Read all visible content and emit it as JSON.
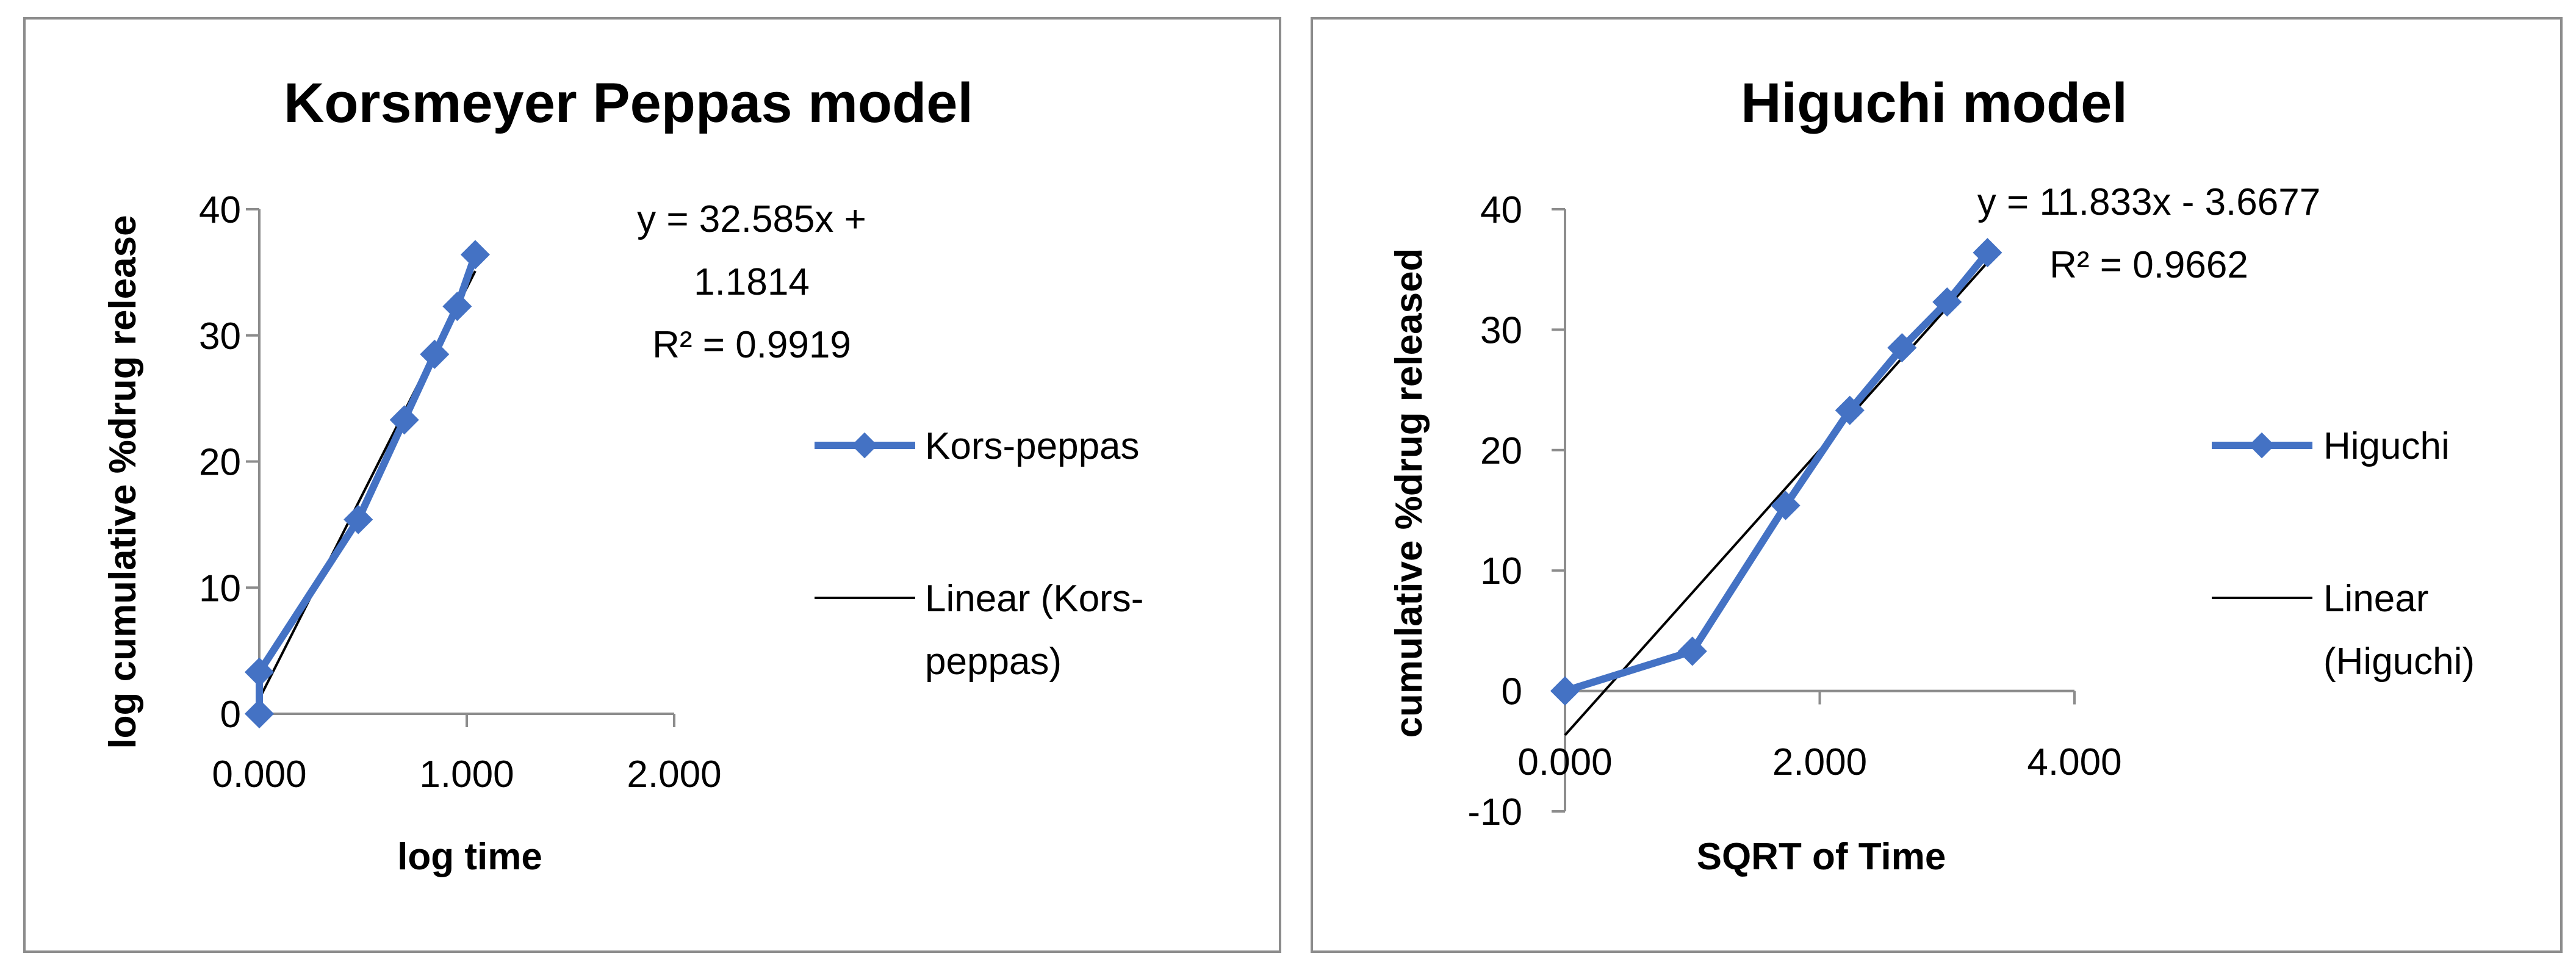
{
  "chart_data": [
    {
      "type": "line",
      "title": "Korsmeyer Peppas model",
      "xlabel": "log time",
      "ylabel": "log cumulative %drug release",
      "xlim": [
        0,
        2
      ],
      "ylim": [
        0,
        40
      ],
      "x_ticks": [
        "0.000",
        "1.000",
        "2.000"
      ],
      "y_ticks": [
        "0",
        "10",
        "20",
        "30",
        "40"
      ],
      "series": [
        {
          "name": "Kors-peppas",
          "color": "#4472C4",
          "x": [
            0,
            0,
            0.477,
            0.699,
            0.845,
            0.954,
            1.041
          ],
          "y": [
            0,
            3.3,
            15.4,
            23.3,
            28.5,
            32.3,
            36.4
          ]
        }
      ],
      "trendline": {
        "name": "Linear (Kors-peppas)",
        "legend_lines": [
          "Linear (Kors-",
          "peppas)"
        ],
        "color": "#000000",
        "slope": 32.585,
        "intercept": 1.1814,
        "x_range": [
          0,
          1.041
        ],
        "equation_lines": [
          "y = 32.585x +",
          "1.1814"
        ],
        "r2_label": "R² = 0.9919"
      },
      "legend_position": "right"
    },
    {
      "type": "line",
      "title": "Higuchi model",
      "xlabel": "SQRT of Time",
      "ylabel": "cumulative %drug released",
      "xlim": [
        0,
        4
      ],
      "ylim": [
        -10,
        40
      ],
      "x_ticks": [
        "0.000",
        "2.000",
        "4.000"
      ],
      "y_ticks": [
        "-10",
        "0",
        "10",
        "20",
        "30",
        "40"
      ],
      "series": [
        {
          "name": "Higuchi",
          "color": "#4472C4",
          "x": [
            0,
            1,
            1.732,
            2.236,
            2.646,
            3,
            3.317
          ],
          "y": [
            0,
            3.3,
            15.4,
            23.3,
            28.5,
            32.3,
            36.4
          ]
        }
      ],
      "trendline": {
        "name": "Linear (Higuchi)",
        "legend_lines": [
          "Linear",
          "(Higuchi)"
        ],
        "color": "#000000",
        "slope": 11.833,
        "intercept": -3.6677,
        "x_range": [
          0,
          3.317
        ],
        "equation_lines": [
          "y = 11.833x - 3.6677"
        ],
        "r2_label": "R² = 0.9662"
      },
      "legend_position": "right"
    }
  ]
}
